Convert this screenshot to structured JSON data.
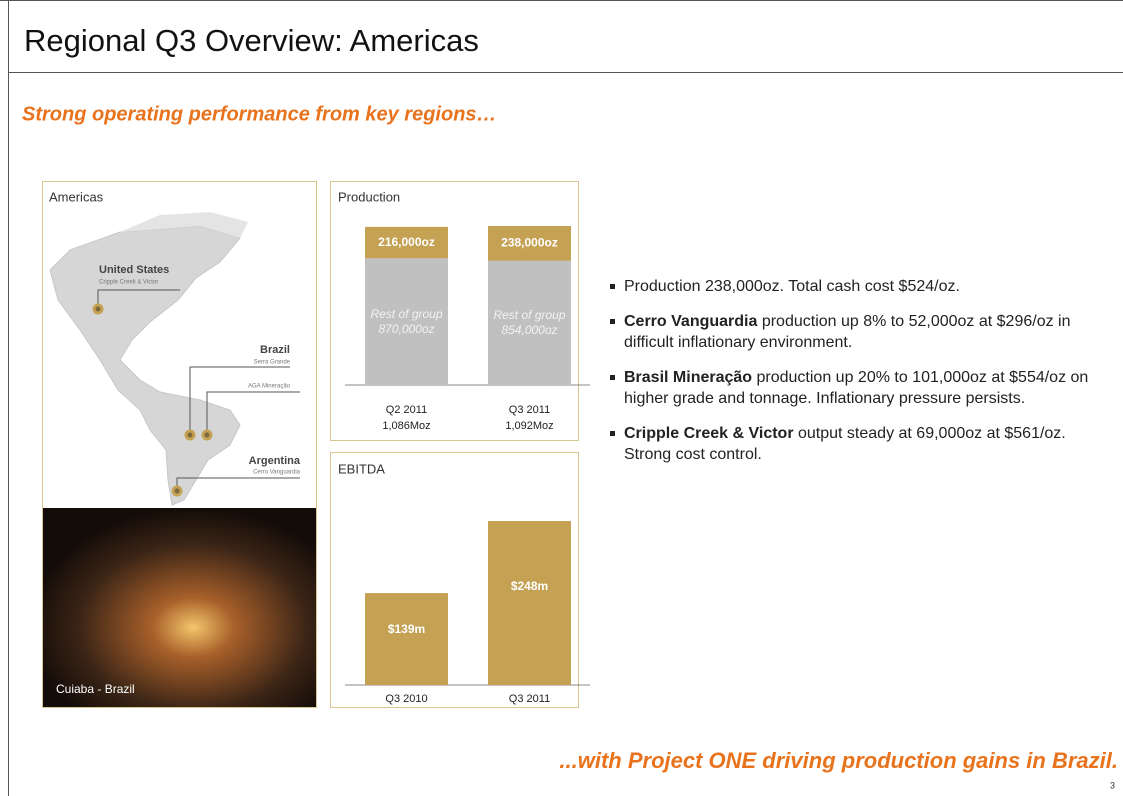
{
  "header": {
    "title": "Regional Q3 Overview: Americas",
    "subtitle": "Strong operating performance from key regions…"
  },
  "map_panel": {
    "label": "Americas",
    "places": [
      {
        "name": "United States",
        "mine": "Cripple Creek & Victor"
      },
      {
        "name": "Brazil",
        "mine": "Serra Grande"
      },
      {
        "mine": "AGA Mineração"
      },
      {
        "name": "Argentina",
        "mine": "Cerro Vanguardia"
      }
    ],
    "photo_caption": "Cuiaba - Brazil"
  },
  "production": {
    "type": "bar",
    "stacked": true,
    "title": "Production",
    "categories": [
      "Q2 2011",
      "Q3 2011"
    ],
    "category_sublabels": [
      "1,086Moz",
      "1,092Moz"
    ],
    "series": [
      {
        "name": "Rest of group",
        "color": "#c0c0c0",
        "values": [
          870000,
          854000
        ],
        "value_labels": [
          "870,000oz",
          "854,000oz"
        ]
      },
      {
        "color": "#c5a253",
        "values": [
          216000,
          238000
        ],
        "value_labels": [
          "216,000oz",
          "238,000oz"
        ]
      }
    ]
  },
  "ebitda": {
    "type": "bar",
    "title": "EBITDA",
    "categories": [
      "Q3 2010",
      "Q3 2011"
    ],
    "values": [
      139,
      248
    ],
    "value_labels": [
      "$139m",
      "$248m"
    ],
    "color": "#c5a253"
  },
  "bullets": [
    {
      "text": "Production 238,000oz. Total cash cost $524/oz."
    },
    {
      "bold": "Cerro Vanguardia",
      "text": " production up 8% to 52,000oz at $296/oz in difficult inflationary environment."
    },
    {
      "bold": "Brasil Mineração",
      "text": " production up 20% to 101,000oz at $554/oz on higher grade and tonnage. Inflationary pressure persists."
    },
    {
      "bold": "Cripple Creek & Victor",
      "text": " output steady at 69,000oz at $561/oz. Strong cost control."
    }
  ],
  "footer": {
    "text": "...with Project ONE driving production gains in Brazil.",
    "page": "3"
  }
}
